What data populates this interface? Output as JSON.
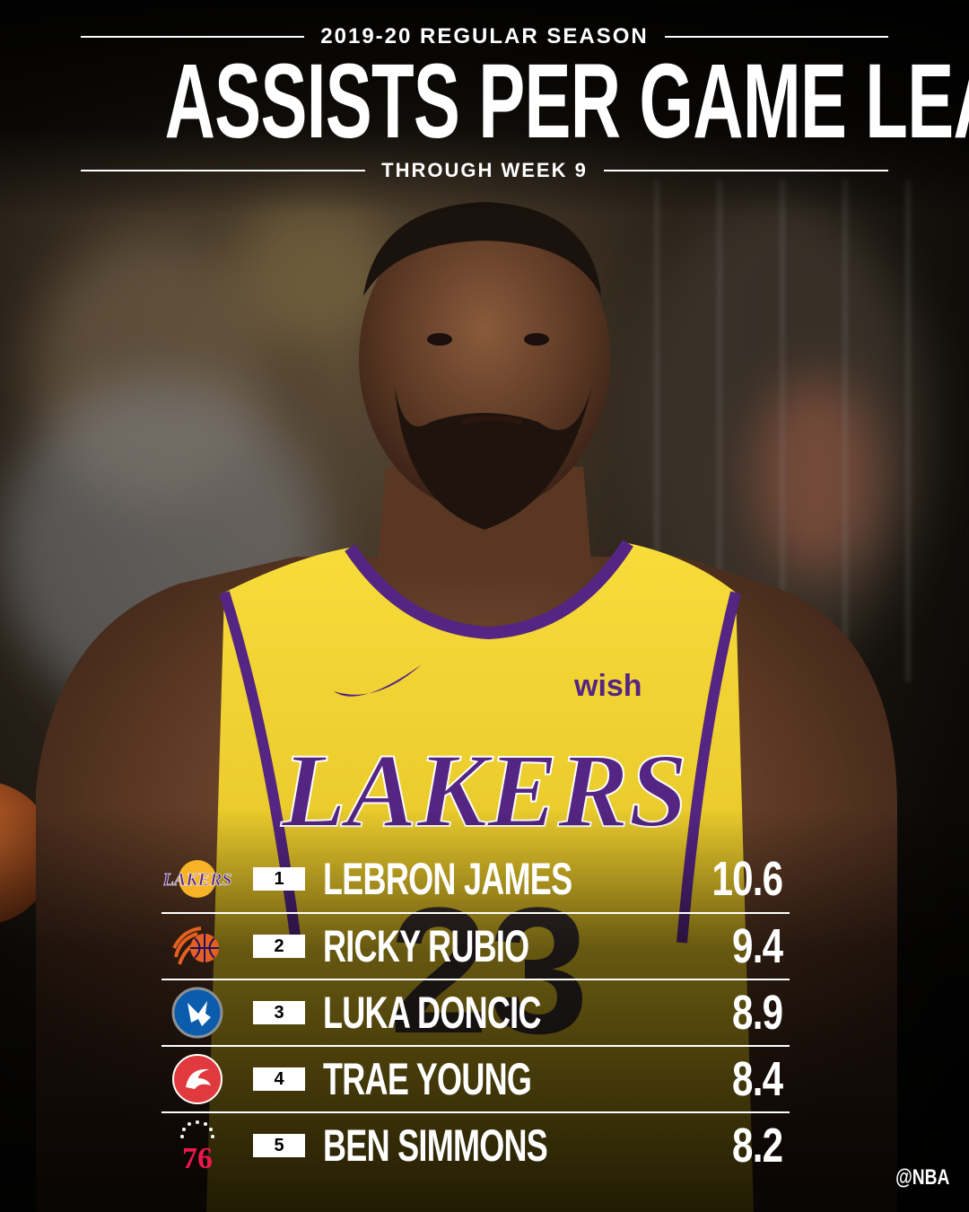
{
  "header": {
    "season": "2019-20 REGULAR SEASON",
    "title": "ASSISTS PER GAME LEADERS",
    "subtitle": "THROUGH WEEK 9"
  },
  "player_photo": {
    "jersey_brand": "LAKERS",
    "sponsor": "wish",
    "number": "23",
    "jersey_color": "#f5d327",
    "trim_color": "#552583"
  },
  "leaders": [
    {
      "rank": "1",
      "name": "LEBRON JAMES",
      "value": "10.6",
      "team_icon": "lakers-logo-icon",
      "team_text": "LAKERS"
    },
    {
      "rank": "2",
      "name": "RICKY RUBIO",
      "value": "9.4",
      "team_icon": "suns-logo-icon"
    },
    {
      "rank": "3",
      "name": "LUKA DONCIC",
      "value": "8.9",
      "team_icon": "mavericks-logo-icon"
    },
    {
      "rank": "4",
      "name": "TRAE YOUNG",
      "value": "8.4",
      "team_icon": "hawks-logo-icon"
    },
    {
      "rank": "5",
      "name": "BEN SIMMONS",
      "value": "8.2",
      "team_icon": "76ers-logo-icon",
      "team_text": "76"
    }
  ],
  "handle": "@NBA"
}
